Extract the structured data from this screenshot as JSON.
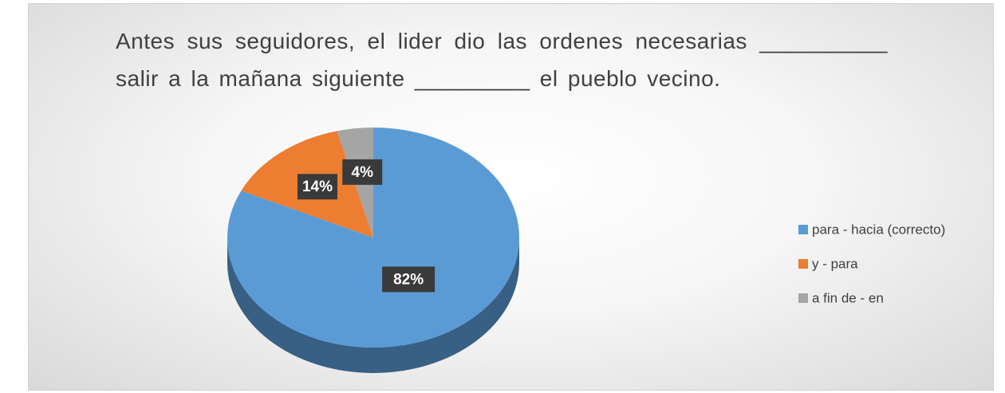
{
  "chart_data": {
    "type": "pie",
    "title": "Antes sus seguidores, el lider dio las ordenes necesarias __________ salir a la mañana siguiente _________ el pueblo vecino.",
    "categories": [
      "para - hacia (correcto)",
      "y - para",
      "a fin de - en"
    ],
    "values": [
      82,
      14,
      4
    ],
    "value_labels": [
      "82%",
      "14%",
      "4%"
    ],
    "colors": [
      "#5b9bd5",
      "#ed7d31",
      "#a5a5a5"
    ],
    "legend": "right"
  }
}
